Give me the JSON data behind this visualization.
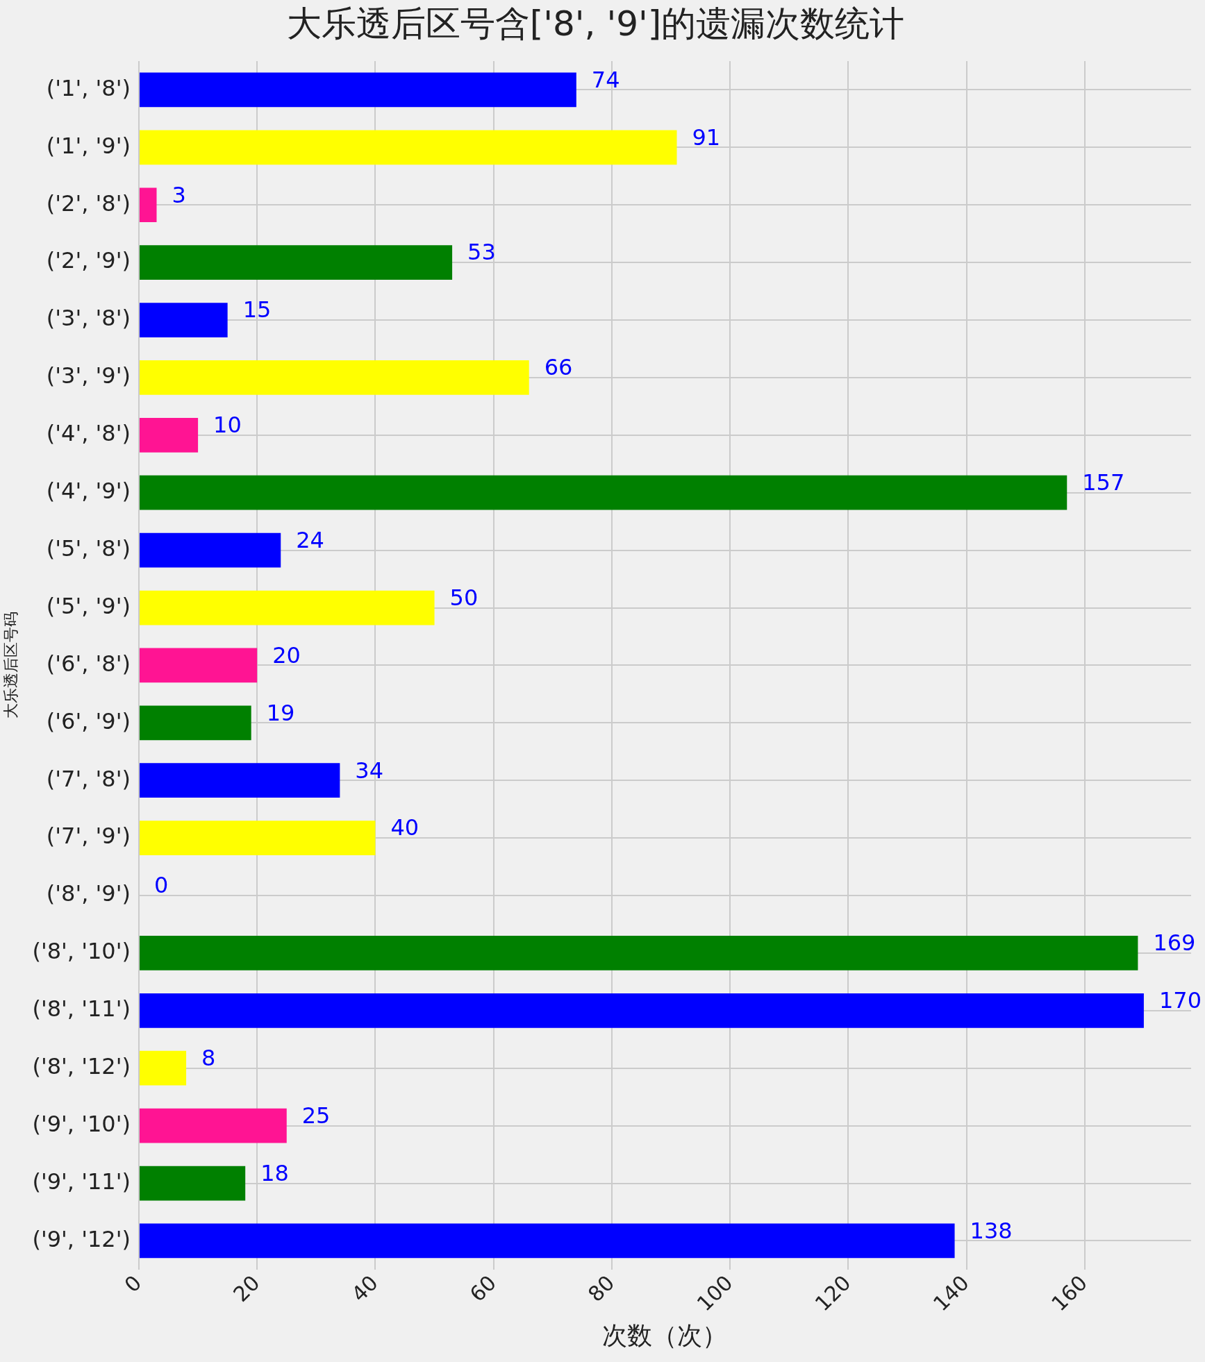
{
  "chart_data": {
    "type": "bar",
    "orientation": "horizontal",
    "title": "大乐透后区号含['8', '9']的遗漏次数统计",
    "xlabel": "次数（次）",
    "ylabel": "大乐透后区号码",
    "categories": [
      "('1', '8')",
      "('1', '9')",
      "('2', '8')",
      "('2', '9')",
      "('3', '8')",
      "('3', '9')",
      "('4', '8')",
      "('4', '9')",
      "('5', '8')",
      "('5', '9')",
      "('6', '8')",
      "('6', '9')",
      "('7', '8')",
      "('7', '9')",
      "('8', '9')",
      "('8', '10')",
      "('8', '11')",
      "('8', '12')",
      "('9', '10')",
      "('9', '11')",
      "('9', '12')"
    ],
    "values": [
      74,
      91,
      3,
      53,
      15,
      66,
      10,
      157,
      24,
      50,
      20,
      19,
      34,
      40,
      0,
      169,
      170,
      8,
      25,
      18,
      138
    ],
    "colors": [
      "#0000ff",
      "#ffff00",
      "#ff1493",
      "#008000",
      "#0000ff",
      "#ffff00",
      "#ff1493",
      "#008000",
      "#0000ff",
      "#ffff00",
      "#ff1493",
      "#008000",
      "#0000ff",
      "#ffff00",
      "#ff1493",
      "#008000",
      "#0000ff",
      "#ffff00",
      "#ff1493",
      "#008000",
      "#0000ff"
    ],
    "xlim": [
      0,
      178
    ],
    "xticks": [
      0,
      20,
      40,
      60,
      80,
      100,
      120,
      140,
      160
    ],
    "grid": true,
    "data_labels": true,
    "legend": false
  }
}
